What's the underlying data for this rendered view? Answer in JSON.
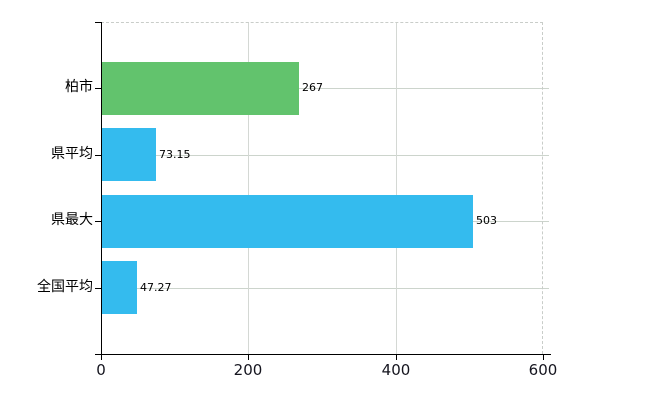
{
  "chart_data": {
    "type": "bar",
    "orientation": "horizontal",
    "title": "",
    "categories": [
      "柏市",
      "県平均",
      "県最大",
      "全国平均"
    ],
    "values": [
      267,
      73.15,
      503,
      47.27
    ],
    "value_labels": [
      "267",
      "73.15",
      "503",
      "47.27"
    ],
    "bar_colors": [
      "#62c36d",
      "#34bbee",
      "#34bbee",
      "#34bbee"
    ],
    "x_ticks": [
      0,
      200,
      400,
      600
    ],
    "x_tick_labels": [
      "0",
      "200",
      "400",
      "600"
    ],
    "xlim": [
      0,
      600
    ],
    "grid": true,
    "legend": false
  },
  "colors": {
    "bar_green": "#62c36d",
    "bar_blue": "#34bbee",
    "gridline_horizontal": "#ccd4cc",
    "gridline_vertical": "#d4d8d4",
    "dashed_border": "#c9cdc9",
    "axis": "#000000",
    "background": "#ffffff",
    "text": "#000000"
  }
}
